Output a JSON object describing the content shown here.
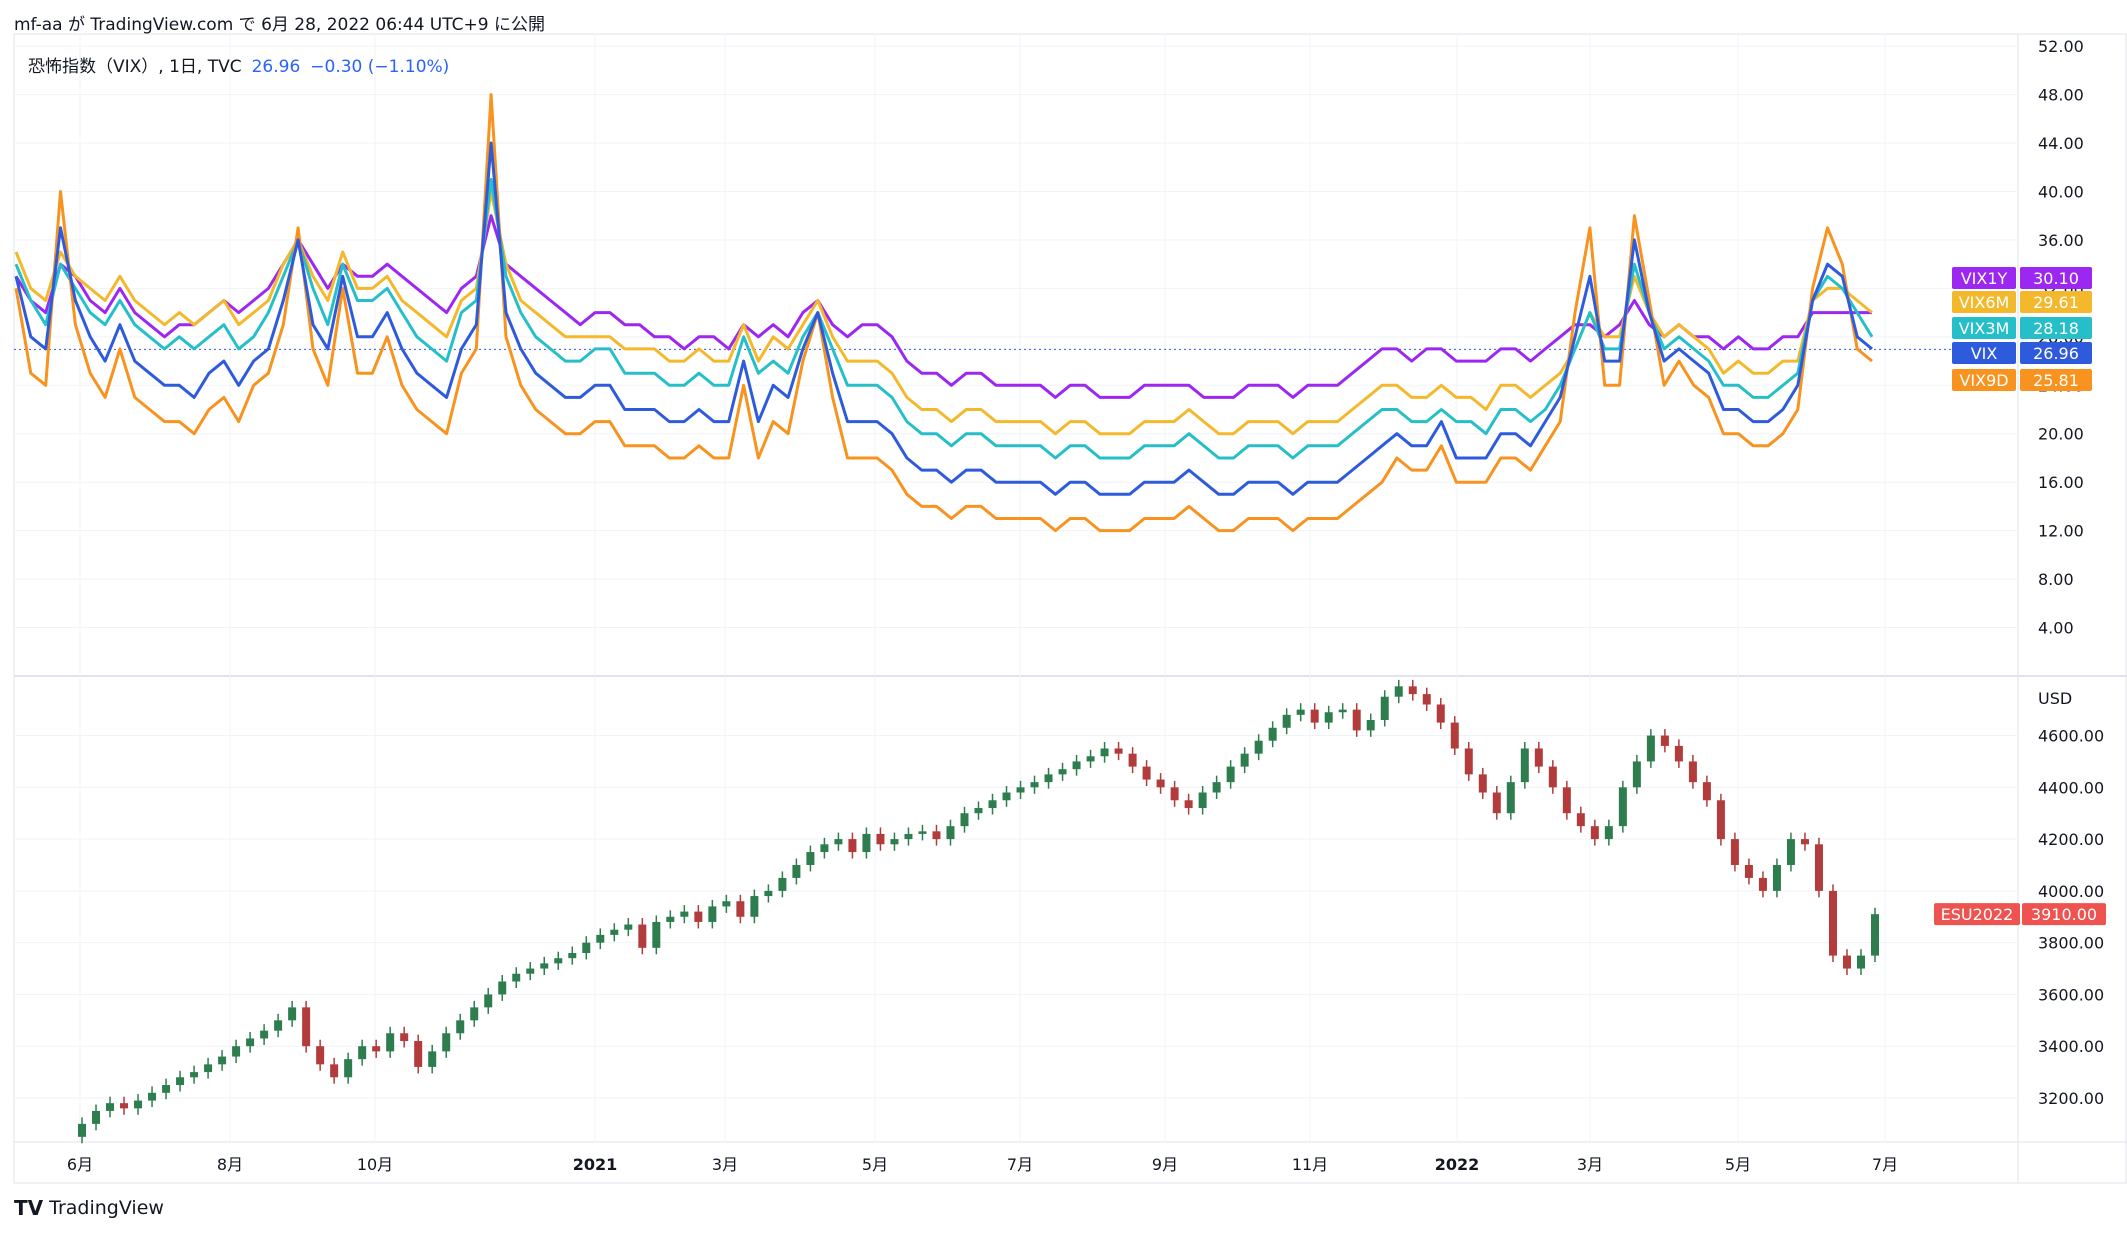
{
  "header": {
    "text": "mf-aa が TradingView.com で 6月 28, 2022 06:44 UTC+9 に公開"
  },
  "legend": {
    "name": "恐怖指数（VIX）, 1日, TVC",
    "value": "26.96",
    "change": "−0.30 (−1.10%)"
  },
  "footer": {
    "brand": "TradingView"
  },
  "chart_data": [
    {
      "type": "line",
      "title": "",
      "y_ticks": [
        "52.00",
        "48.00",
        "44.00",
        "40.00",
        "36.00",
        "32.00",
        "28.00",
        "24.00",
        "20.00",
        "16.00",
        "12.00",
        "8.00",
        "4.00"
      ],
      "ylim": [
        0,
        53
      ],
      "x_ticks": [
        "6月",
        "8月",
        "10月",
        "2021",
        "3月",
        "5月",
        "7月",
        "9月",
        "11月",
        "2022",
        "3月",
        "5月",
        "7月"
      ],
      "grid": true,
      "series": [
        {
          "name": "VIX1Y",
          "color": "#9c27f0",
          "last": "30.10",
          "values": [
            33,
            31,
            30,
            34,
            33,
            31,
            30,
            32,
            30,
            29,
            28,
            29,
            29,
            30,
            31,
            30,
            31,
            32,
            34,
            36,
            34,
            32,
            34,
            33,
            33,
            34,
            33,
            32,
            31,
            30,
            32,
            33,
            38,
            34,
            33,
            32,
            31,
            30,
            29,
            30,
            30,
            29,
            29,
            28,
            28,
            27,
            28,
            28,
            27,
            29,
            28,
            29,
            28,
            30,
            31,
            29,
            28,
            29,
            29,
            28,
            26,
            25,
            25,
            24,
            25,
            25,
            24,
            24,
            24,
            24,
            23,
            24,
            24,
            23,
            23,
            23,
            24,
            24,
            24,
            24,
            23,
            23,
            23,
            24,
            24,
            24,
            23,
            24,
            24,
            24,
            25,
            26,
            27,
            27,
            26,
            27,
            27,
            26,
            26,
            26,
            27,
            27,
            26,
            27,
            28,
            29,
            29,
            28,
            29,
            31,
            29,
            28,
            29,
            28,
            28,
            27,
            28,
            27,
            27,
            28,
            28,
            30,
            30,
            30,
            30,
            30
          ]
        },
        {
          "name": "VIX6M",
          "color": "#f4b82c",
          "last": "29.61",
          "values": [
            35,
            32,
            31,
            35,
            33,
            32,
            31,
            33,
            31,
            30,
            29,
            30,
            29,
            30,
            31,
            29,
            30,
            31,
            34,
            36,
            33,
            31,
            35,
            32,
            32,
            33,
            31,
            30,
            29,
            28,
            31,
            32,
            40,
            34,
            31,
            30,
            29,
            28,
            28,
            28,
            28,
            27,
            27,
            27,
            26,
            26,
            27,
            26,
            26,
            29,
            26,
            28,
            27,
            29,
            31,
            28,
            26,
            26,
            26,
            25,
            23,
            22,
            22,
            21,
            22,
            22,
            21,
            21,
            21,
            21,
            20,
            21,
            21,
            20,
            20,
            20,
            21,
            21,
            21,
            22,
            21,
            20,
            20,
            21,
            21,
            21,
            20,
            21,
            21,
            21,
            22,
            23,
            24,
            24,
            23,
            23,
            24,
            23,
            23,
            22,
            24,
            24,
            23,
            24,
            25,
            27,
            30,
            28,
            28,
            33,
            30,
            28,
            29,
            28,
            27,
            25,
            26,
            25,
            25,
            26,
            26,
            31,
            32,
            32,
            31,
            30
          ]
        },
        {
          "name": "VIX3M",
          "color": "#26bfc9",
          "last": "28.18",
          "values": [
            34,
            31,
            29,
            34,
            32,
            30,
            29,
            31,
            29,
            28,
            27,
            28,
            27,
            28,
            29,
            27,
            28,
            30,
            33,
            36,
            32,
            29,
            34,
            31,
            31,
            32,
            30,
            28,
            27,
            26,
            30,
            31,
            41,
            33,
            30,
            28,
            27,
            26,
            26,
            27,
            27,
            25,
            25,
            25,
            24,
            24,
            25,
            24,
            24,
            28,
            25,
            26,
            25,
            28,
            30,
            27,
            24,
            24,
            24,
            23,
            21,
            20,
            20,
            19,
            20,
            20,
            19,
            19,
            19,
            19,
            18,
            19,
            19,
            18,
            18,
            18,
            19,
            19,
            19,
            20,
            19,
            18,
            18,
            19,
            19,
            19,
            18,
            19,
            19,
            19,
            20,
            21,
            22,
            22,
            21,
            21,
            22,
            21,
            21,
            20,
            22,
            22,
            21,
            22,
            24,
            27,
            30,
            27,
            27,
            34,
            30,
            27,
            28,
            27,
            26,
            24,
            24,
            23,
            23,
            24,
            25,
            31,
            33,
            32,
            30,
            28
          ]
        },
        {
          "name": "VIX",
          "color": "#2e5bdc",
          "last": "26.96",
          "values": [
            33,
            28,
            27,
            37,
            31,
            28,
            26,
            29,
            26,
            25,
            24,
            24,
            23,
            25,
            26,
            24,
            26,
            27,
            31,
            36,
            29,
            27,
            33,
            28,
            28,
            30,
            27,
            25,
            24,
            23,
            27,
            29,
            44,
            30,
            27,
            25,
            24,
            23,
            23,
            24,
            24,
            22,
            22,
            22,
            21,
            21,
            22,
            21,
            21,
            26,
            21,
            24,
            23,
            27,
            30,
            25,
            21,
            21,
            21,
            20,
            18,
            17,
            17,
            16,
            17,
            17,
            16,
            16,
            16,
            16,
            15,
            16,
            16,
            15,
            15,
            15,
            16,
            16,
            16,
            17,
            16,
            15,
            15,
            16,
            16,
            16,
            15,
            16,
            16,
            16,
            17,
            18,
            19,
            20,
            19,
            19,
            21,
            18,
            18,
            18,
            20,
            20,
            19,
            21,
            23,
            28,
            33,
            26,
            26,
            36,
            30,
            26,
            27,
            26,
            25,
            22,
            22,
            21,
            21,
            22,
            24,
            31,
            34,
            33,
            28,
            27
          ]
        },
        {
          "name": "VIX9D",
          "color": "#f7931e",
          "last": "25.81",
          "values": [
            32,
            25,
            24,
            40,
            29,
            25,
            23,
            27,
            23,
            22,
            21,
            21,
            20,
            22,
            23,
            21,
            24,
            25,
            29,
            37,
            27,
            24,
            32,
            25,
            25,
            28,
            24,
            22,
            21,
            20,
            25,
            27,
            48,
            28,
            24,
            22,
            21,
            20,
            20,
            21,
            21,
            19,
            19,
            19,
            18,
            18,
            19,
            18,
            18,
            24,
            18,
            21,
            20,
            26,
            30,
            23,
            18,
            18,
            18,
            17,
            15,
            14,
            14,
            13,
            14,
            14,
            13,
            13,
            13,
            13,
            12,
            13,
            13,
            12,
            12,
            12,
            13,
            13,
            13,
            14,
            13,
            12,
            12,
            13,
            13,
            13,
            12,
            13,
            13,
            13,
            14,
            15,
            16,
            18,
            17,
            17,
            19,
            16,
            16,
            16,
            18,
            18,
            17,
            19,
            21,
            30,
            37,
            24,
            24,
            38,
            31,
            24,
            26,
            24,
            23,
            20,
            20,
            19,
            19,
            20,
            22,
            32,
            37,
            34,
            27,
            26
          ]
        }
      ]
    },
    {
      "type": "candlestick",
      "title": "",
      "unit": "USD",
      "y_ticks": [
        "4600.00",
        "4400.00",
        "4200.00",
        "4000.00",
        "3800.00",
        "3600.00",
        "3400.00",
        "3200.00"
      ],
      "ylim": [
        3030,
        4830
      ],
      "series": [
        {
          "name": "ESU2022",
          "color": "#ef5350",
          "last": "3910.00",
          "values": [
            3050,
            3100,
            3150,
            3180,
            3160,
            3190,
            3220,
            3250,
            3280,
            3300,
            3330,
            3360,
            3400,
            3430,
            3460,
            3500,
            3550,
            3400,
            3330,
            3280,
            3350,
            3400,
            3380,
            3450,
            3420,
            3320,
            3380,
            3450,
            3500,
            3550,
            3600,
            3650,
            3680,
            3700,
            3720,
            3740,
            3760,
            3800,
            3830,
            3850,
            3870,
            3780,
            3880,
            3900,
            3920,
            3880,
            3940,
            3960,
            3900,
            3980,
            4000,
            4050,
            4100,
            4150,
            4180,
            4200,
            4150,
            4220,
            4180,
            4200,
            4220,
            4230,
            4200,
            4250,
            4300,
            4320,
            4350,
            4380,
            4400,
            4420,
            4450,
            4470,
            4500,
            4520,
            4550,
            4530,
            4480,
            4430,
            4400,
            4350,
            4320,
            4380,
            4420,
            4480,
            4530,
            4580,
            4630,
            4680,
            4700,
            4650,
            4690,
            4700,
            4620,
            4660,
            4750,
            4790,
            4760,
            4720,
            4650,
            4550,
            4450,
            4380,
            4300,
            4420,
            4550,
            4480,
            4400,
            4300,
            4250,
            4200,
            4250,
            4400,
            4500,
            4600,
            4560,
            4500,
            4420,
            4350,
            4200,
            4100,
            4050,
            4000,
            4100,
            4200,
            4180,
            4000,
            3750,
            3700,
            3750,
            3910
          ]
        }
      ]
    }
  ]
}
